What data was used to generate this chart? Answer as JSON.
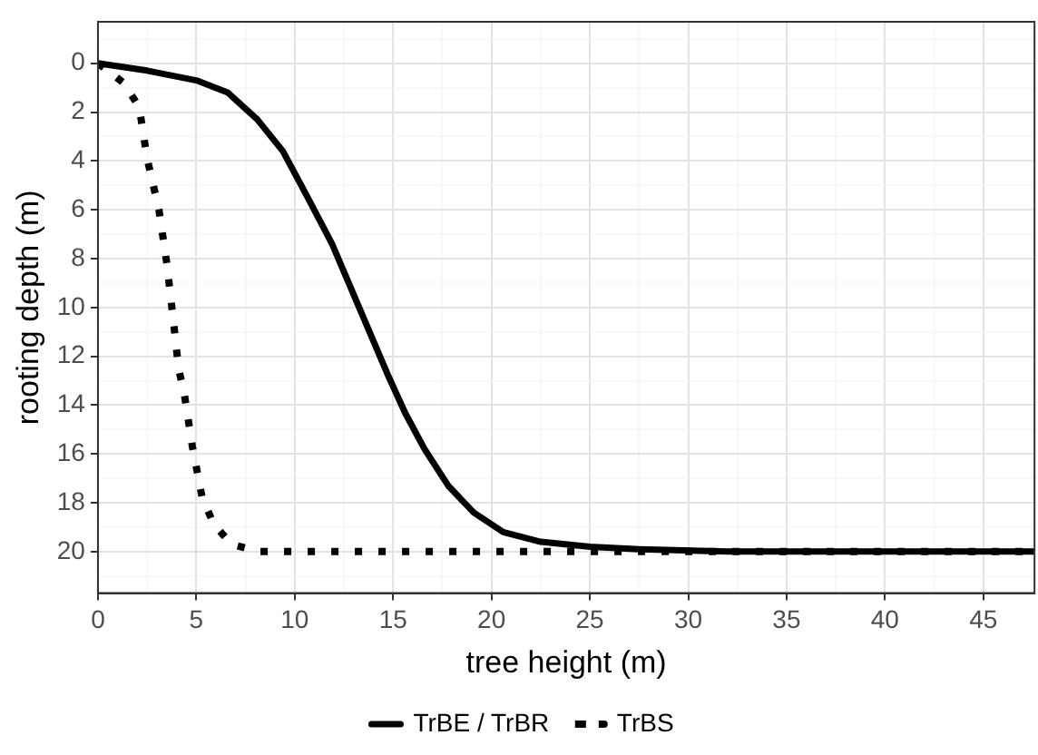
{
  "chart_data": {
    "type": "line",
    "xlabel": "tree height (m)",
    "ylabel": "rooting depth (m)",
    "xlim": [
      0,
      47.6
    ],
    "ylim": [
      21.7,
      -1.7
    ],
    "xticks": [
      0,
      {
        "value": 2.5,
        "label": null
      },
      5,
      {
        "value": 7.5,
        "label": null
      },
      10,
      {
        "value": 12.5,
        "label": null
      },
      15,
      {
        "value": 17.5,
        "label": null
      },
      20,
      {
        "value": 22.5,
        "label": null
      },
      25,
      {
        "value": 27.5,
        "label": null
      },
      30,
      {
        "value": 32.5,
        "label": null
      },
      35,
      {
        "value": 37.5,
        "label": null
      },
      40,
      {
        "value": 42.5,
        "label": null
      },
      45,
      {
        "value": 47.5,
        "label": null
      }
    ],
    "yticks": [
      {
        "value": -1,
        "label": null
      },
      0,
      {
        "value": 1,
        "label": null
      },
      2,
      {
        "value": 3,
        "label": null
      },
      4,
      {
        "value": 5,
        "label": null
      },
      6,
      {
        "value": 7,
        "label": null
      },
      8,
      {
        "value": 9,
        "label": null
      },
      10,
      {
        "value": 11,
        "label": null
      },
      12,
      {
        "value": 13,
        "label": null
      },
      14,
      {
        "value": 15,
        "label": null
      },
      16,
      {
        "value": 17,
        "label": null
      },
      18,
      {
        "value": 19,
        "label": null
      },
      20,
      {
        "value": 21,
        "label": null
      }
    ],
    "grid": true,
    "legend": "bottom",
    "marker": "none",
    "series": [
      {
        "name": "TrBE / TrBR",
        "color": "#000000",
        "line_style": "solid",
        "x": [
          0,
          2.5,
          5,
          6.6,
          8.1,
          9.4,
          10.6,
          11.9,
          12.8,
          13.8,
          14.7,
          15.6,
          16.6,
          17.8,
          19.1,
          20.6,
          22.5,
          25,
          27.5,
          32,
          47.6
        ],
        "values": [
          0,
          0.3,
          0.7,
          1.2,
          2.3,
          3.6,
          5.4,
          7.4,
          9.1,
          11,
          12.7,
          14.3,
          15.8,
          17.3,
          18.4,
          19.2,
          19.6,
          19.8,
          19.9,
          20,
          20
        ]
      },
      {
        "name": "TrBS",
        "color": "#000000",
        "line_style": "dotted",
        "x": [
          0,
          1.3,
          2.1,
          2.5,
          3.1,
          3.5,
          3.8,
          4.1,
          4.4,
          4.8,
          5.3,
          5.9,
          6.8,
          8.2,
          47.6
        ],
        "values": [
          0,
          0.8,
          1.8,
          3.9,
          6,
          8.2,
          10.3,
          12.5,
          13.6,
          15.7,
          17.8,
          18.9,
          19.7,
          20,
          20
        ]
      }
    ]
  }
}
